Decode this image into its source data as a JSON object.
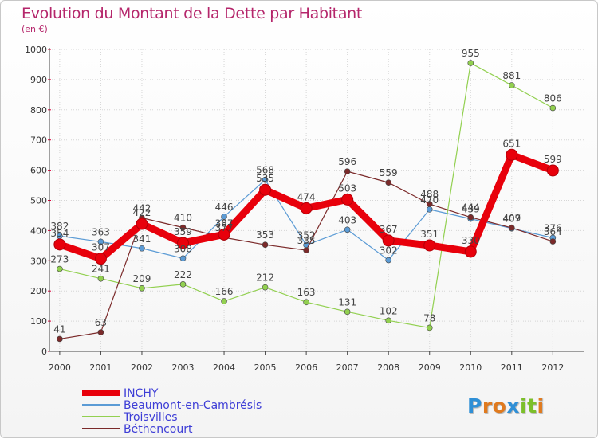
{
  "title": "Evolution du Montant de la Dette par Habitant",
  "subtitle": "(en €)",
  "logo": [
    "P",
    "r",
    "o",
    "x",
    "i",
    "t",
    "i"
  ],
  "chart_data": {
    "type": "line",
    "x": [
      "2000",
      "2001",
      "2002",
      "2003",
      "2004",
      "2005",
      "2006",
      "2007",
      "2008",
      "2009",
      "2010",
      "2011",
      "2012"
    ],
    "ylim": [
      0,
      1000
    ],
    "yticks": [
      0,
      100,
      200,
      300,
      400,
      500,
      600,
      700,
      800,
      900,
      1000
    ],
    "grid": true,
    "legend_position": "bottom-left",
    "series": [
      {
        "name": "INCHY",
        "color": "#e8000b",
        "width": 9,
        "marker": 7,
        "values": [
          354,
          307,
          422,
          359,
          387,
          535,
          474,
          503,
          367,
          351,
          330,
          651,
          599
        ]
      },
      {
        "name": "Beaumont-en-Cambrésis",
        "color": "#5b9bd5",
        "width": 1.2,
        "marker": 3.5,
        "values": [
          382,
          363,
          341,
          308,
          446,
          568,
          352,
          403,
          302,
          470,
          439,
          407,
          376
        ]
      },
      {
        "name": "Troisvilles",
        "color": "#92d050",
        "width": 1.2,
        "marker": 3.5,
        "values": [
          273,
          241,
          209,
          222,
          166,
          212,
          163,
          131,
          102,
          78,
          955,
          881,
          806
        ]
      },
      {
        "name": "Béthencourt",
        "color": "#7b2a2a",
        "width": 1.2,
        "marker": 3.5,
        "values": [
          41,
          63,
          442,
          410,
          377,
          353,
          335,
          596,
          559,
          488,
          444,
          409,
          364
        ]
      }
    ]
  }
}
